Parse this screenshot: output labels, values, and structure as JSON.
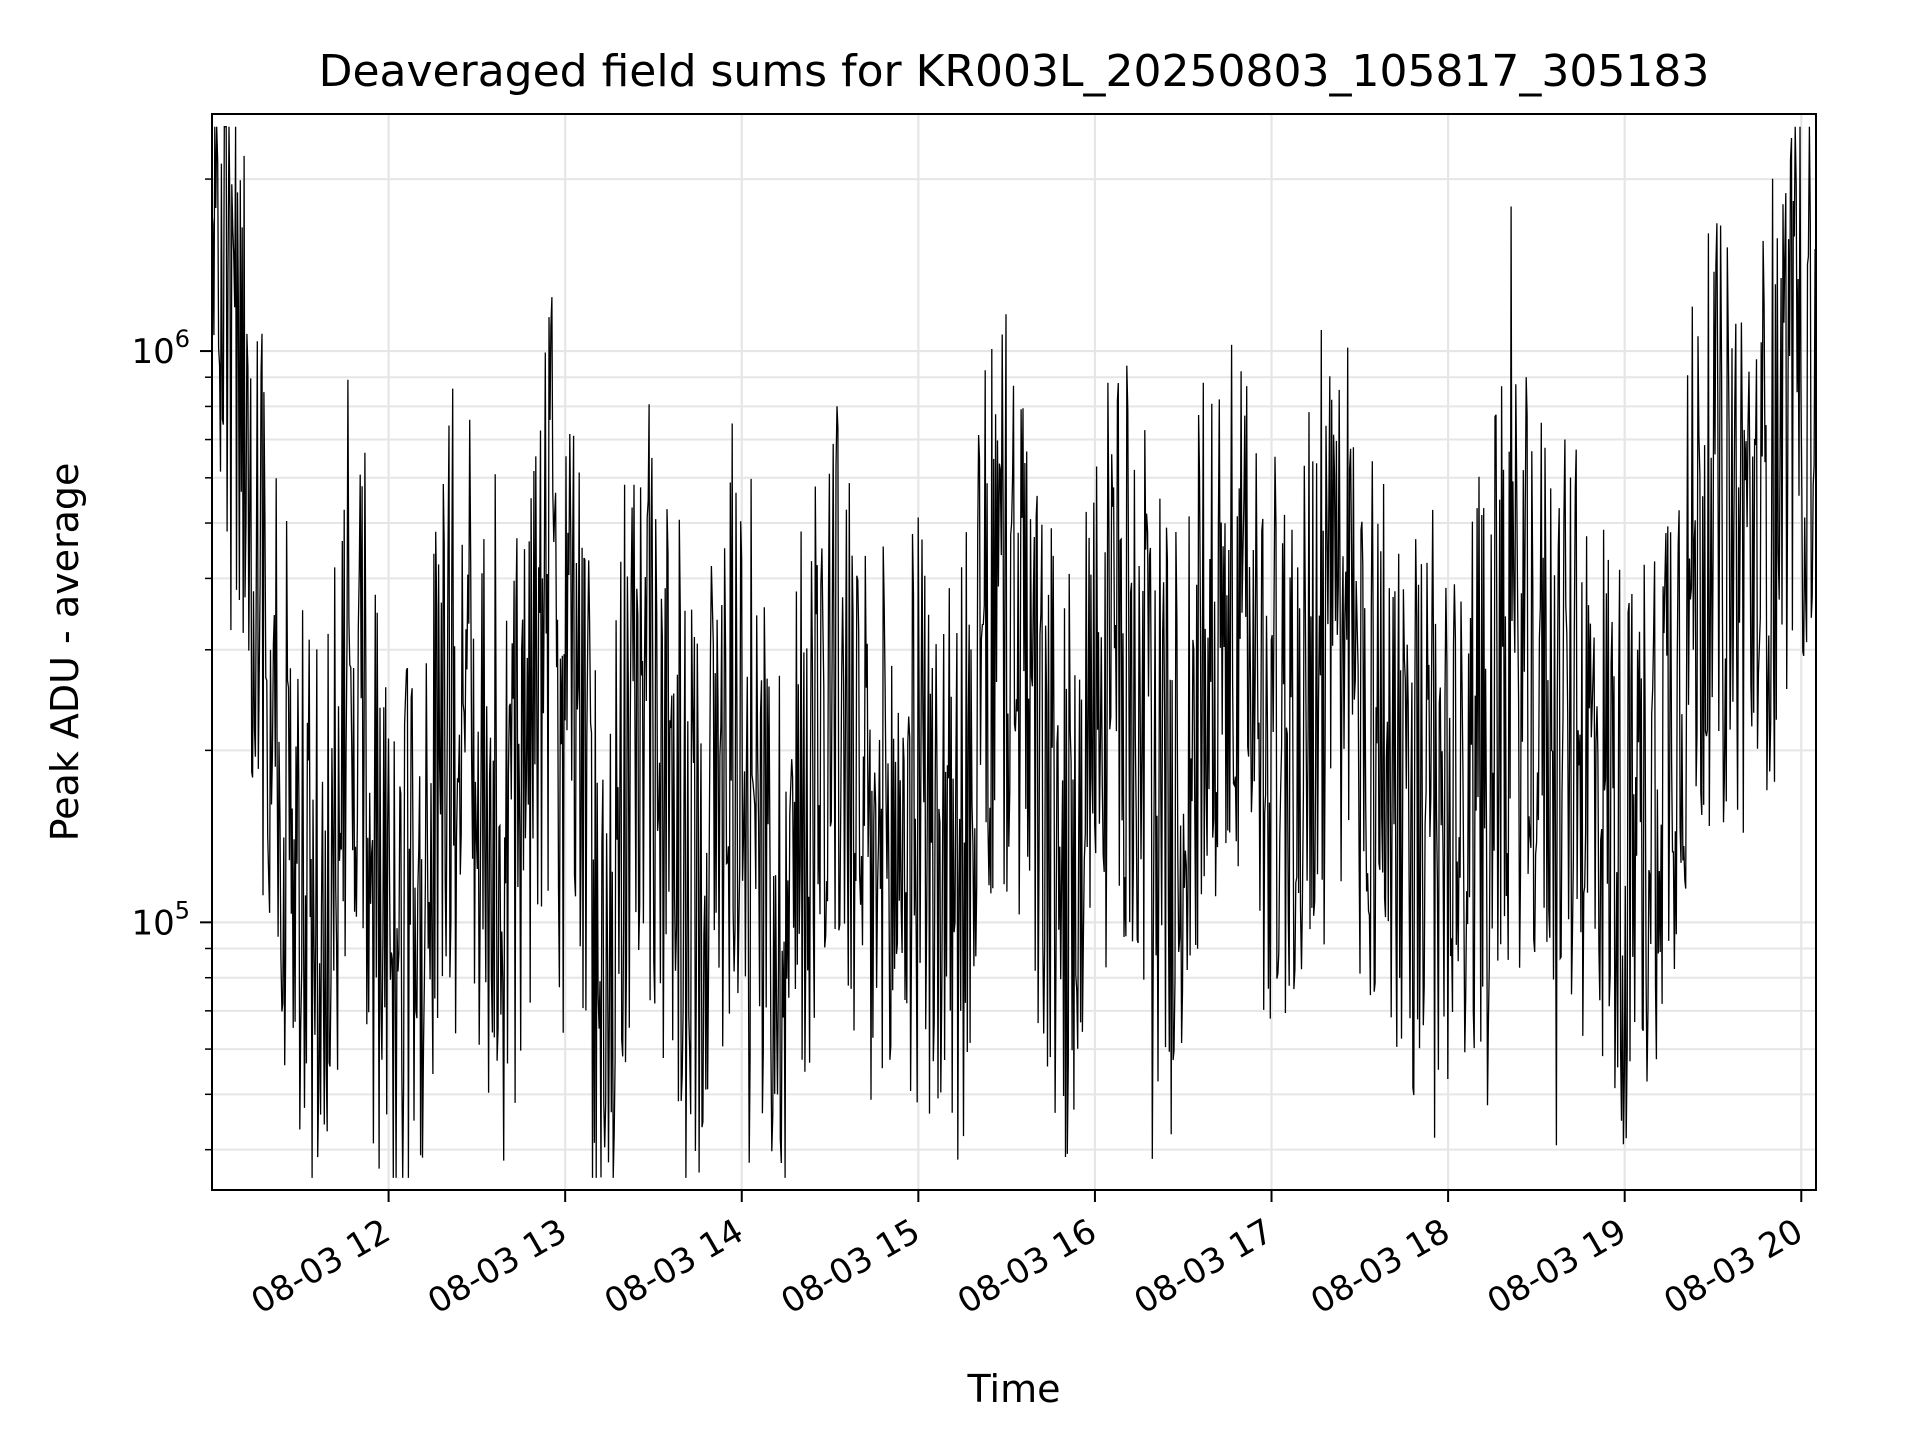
{
  "chart_data": {
    "type": "line",
    "title": "Deaveraged field sums for KR003L_20250803_105817_305183",
    "xlabel": "Time",
    "ylabel": "Peak ADU - average",
    "yscale": "log",
    "xlim": [
      "08-03 11:00",
      "08-03 20:05"
    ],
    "ylim": [
      34000,
      2600000
    ],
    "grid": true,
    "line_color": "#000000",
    "x_ticks": [
      "08-03 12",
      "08-03 13",
      "08-03 14",
      "08-03 15",
      "08-03 16",
      "08-03 17",
      "08-03 18",
      "08-03 19",
      "08-03 20"
    ],
    "y_ticks": [
      {
        "base": "10",
        "exp": "5",
        "value": 100000
      },
      {
        "base": "10",
        "exp": "6",
        "value": 1000000
      }
    ],
    "series": [
      {
        "x_start": "08-03 11:00",
        "x_end": "08-03 20:05",
        "values": [
          1800000,
          1200000,
          900000,
          550000,
          320000,
          200000,
          150000,
          110000,
          90000,
          120000,
          250000,
          320000,
          180000,
          95000,
          75000,
          85000,
          110000,
          160000,
          260000,
          280000,
          200000,
          140000,
          110000,
          140000,
          200000,
          330000,
          380000,
          280000,
          200000,
          110000,
          90000,
          120000,
          200000,
          260000,
          200000,
          140000,
          110000,
          120000,
          150000,
          200000,
          230000,
          180000,
          120000,
          100000,
          110000,
          150000,
          230000,
          280000,
          240000,
          160000,
          120000,
          110000,
          130000,
          150000,
          160000,
          130000,
          110000,
          130000,
          200000,
          300000,
          360000,
          330000,
          250000,
          180000,
          130000,
          120000,
          140000,
          200000,
          260000,
          300000,
          280000,
          220000,
          170000,
          140000,
          180000,
          250000,
          300000,
          330000,
          310000,
          270000,
          230000,
          200000,
          210000,
          250000,
          280000,
          300000,
          270000,
          250000,
          230000,
          210000,
          190000,
          170000,
          150000,
          130000,
          120000,
          140000,
          180000,
          220000,
          260000,
          280000,
          270000,
          250000,
          230000,
          210000,
          200000,
          190000,
          170000,
          140000,
          120000,
          150000,
          200000,
          250000,
          330000,
          420000,
          500000,
          520000,
          480000,
          430000,
          520000,
          700000,
          850000,
          900000,
          1000000
        ]
      }
    ]
  }
}
